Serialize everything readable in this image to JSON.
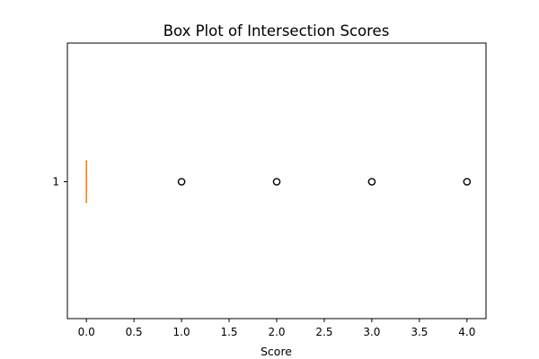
{
  "chart_data": {
    "type": "box",
    "orientation": "horizontal",
    "title": "Box Plot of Intersection Scores",
    "xlabel": "Score",
    "ylabel": "",
    "xlim": [
      -0.2,
      4.2
    ],
    "xticks": [
      0.0,
      0.5,
      1.0,
      1.5,
      2.0,
      2.5,
      3.0,
      3.5,
      4.0
    ],
    "xtick_labels": [
      "0.0",
      "0.5",
      "1.0",
      "1.5",
      "2.0",
      "2.5",
      "3.0",
      "3.5",
      "4.0"
    ],
    "category_labels": [
      "1"
    ],
    "grid": false,
    "legend": "none",
    "boxes": [
      {
        "category": "1",
        "min": 0.0,
        "q1": 0.0,
        "median": 0.0,
        "q3": 0.0,
        "max": 0.0,
        "outliers": [
          1.0,
          2.0,
          3.0,
          4.0
        ]
      }
    ],
    "colors": {
      "box": "#000000",
      "median": "#ff7f0e",
      "flier_edge": "#000000",
      "flier_face": "none",
      "axes": "#000000",
      "background": "#ffffff"
    }
  }
}
